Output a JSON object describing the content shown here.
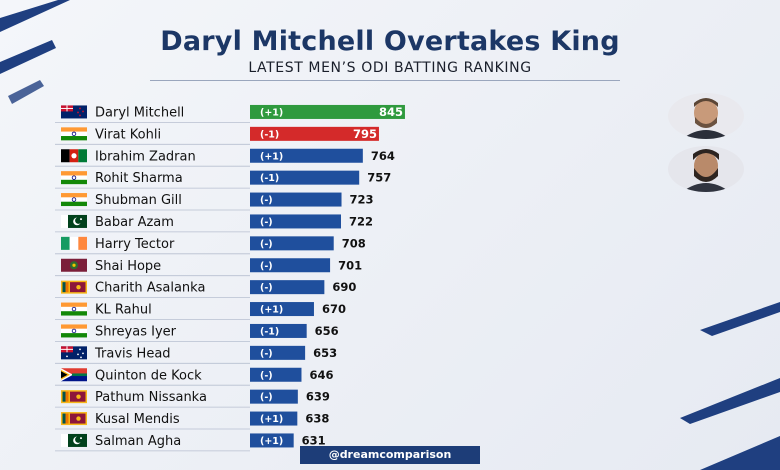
{
  "header": {
    "title": "Daryl Mitchell Overtakes King",
    "subtitle": "LATEST MEN’S ODI BATTING RANKING"
  },
  "watermark": "@dreamcomparison",
  "colors": {
    "title": "#1c3766",
    "bar_default": "#1f4f9d",
    "bar_first": "#2f9a3e",
    "bar_second": "#d42a2a"
  },
  "chart_data": {
    "type": "bar",
    "orientation": "horizontal",
    "title": "Daryl Mitchell Overtakes King",
    "subtitle": "LATEST MEN’S ODI BATTING RANKING",
    "categories": [
      "Daryl Mitchell",
      "Virat Kohli",
      "Ibrahim Zadran",
      "Rohit Sharma",
      "Shubman Gill",
      "Babar Azam",
      "Harry Tector",
      "Shai Hope",
      "Charith Asalanka",
      "KL Rahul",
      "Shreyas Iyer",
      "Travis Head",
      "Quinton de Kock",
      "Pathum Nissanka",
      "Kusal Mendis",
      "Salman Agha"
    ],
    "values": [
      845,
      795,
      764,
      757,
      723,
      722,
      708,
      701,
      690,
      670,
      656,
      653,
      646,
      639,
      638,
      631
    ],
    "changes": [
      "(+1)",
      "(-1)",
      "(+1)",
      "(-1)",
      "(-)",
      "(-)",
      "(-)",
      "(-)",
      "(-)",
      "(+1)",
      "(-1)",
      "(-)",
      "(-)",
      "(-)",
      "(+1)",
      "(+1)"
    ],
    "flags": [
      "new-zealand-flag-icon",
      "india-flag-icon",
      "afghanistan-flag-icon",
      "india-flag-icon",
      "india-flag-icon",
      "pakistan-flag-icon",
      "ireland-flag-icon",
      "west-indies-flag-icon",
      "sri-lanka-flag-icon",
      "india-flag-icon",
      "india-flag-icon",
      "australia-flag-icon",
      "south-africa-flag-icon",
      "sri-lanka-flag-icon",
      "sri-lanka-flag-icon",
      "pakistan-flag-icon"
    ],
    "grid": false,
    "legend": "none"
  }
}
